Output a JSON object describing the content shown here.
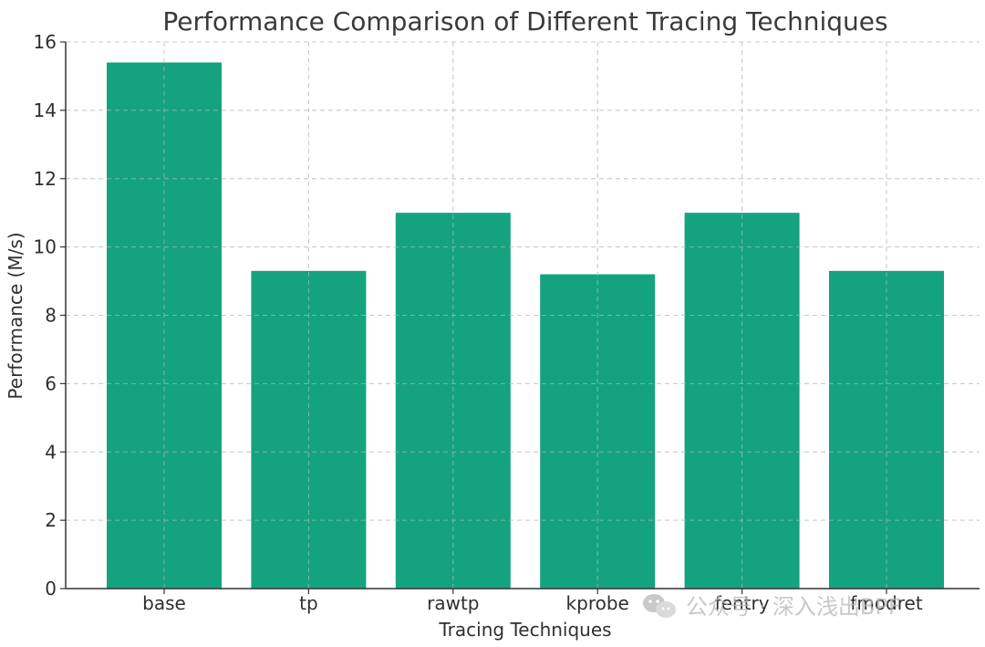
{
  "chart_data": {
    "type": "bar",
    "title": "Performance Comparison of Different Tracing Techniques",
    "xlabel": "Tracing Techniques",
    "ylabel": "Performance (M/s)",
    "categories": [
      "base",
      "tp",
      "rawtp",
      "kprobe",
      "fentry",
      "fmodret"
    ],
    "values": [
      15.4,
      9.3,
      11.0,
      9.2,
      11.0,
      9.3
    ],
    "ylim": [
      0,
      16
    ],
    "yticks": [
      0,
      2,
      4,
      6,
      8,
      10,
      12,
      14,
      16
    ],
    "grid": true,
    "bar_color": "#15a37f"
  },
  "watermark": {
    "text": "公众号 · 深入浅出BPF",
    "icon": "wechat-icon"
  }
}
